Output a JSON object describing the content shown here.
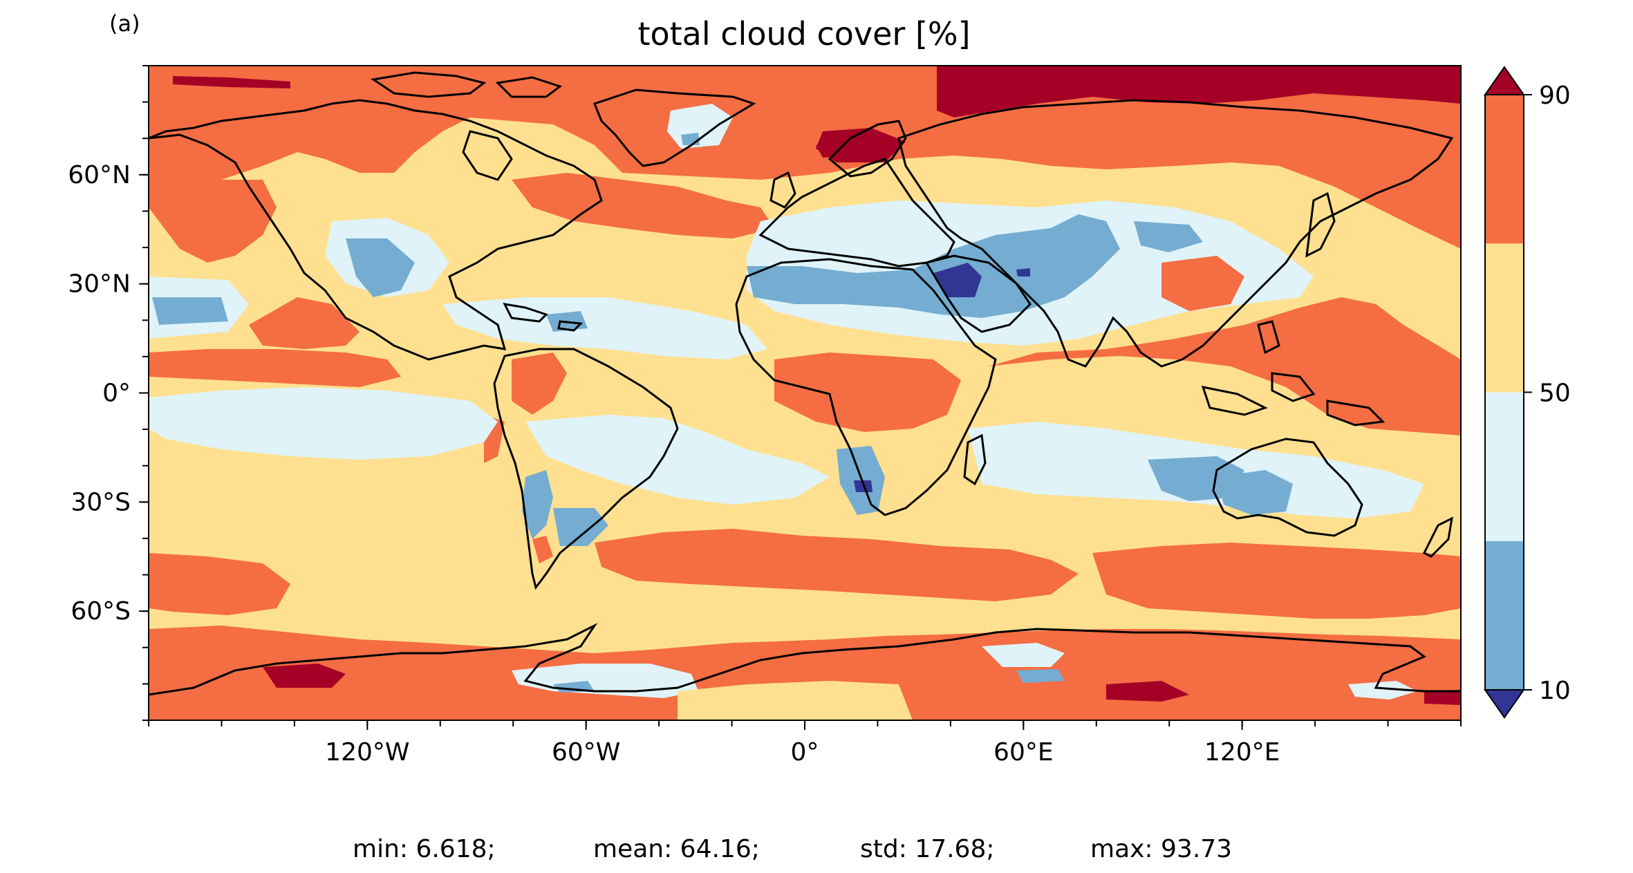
{
  "panel_label": "(a)",
  "title": "total cloud cover [%]",
  "axes": {
    "lon_ticks": [
      {
        "value": -120,
        "label": "120°W"
      },
      {
        "value": -60,
        "label": "60°W"
      },
      {
        "value": 0,
        "label": "0°"
      },
      {
        "value": 60,
        "label": "60°E"
      },
      {
        "value": 120,
        "label": "120°E"
      }
    ],
    "lat_ticks": [
      {
        "value": 60,
        "label": "60°N"
      },
      {
        "value": 30,
        "label": "30°N"
      },
      {
        "value": 0,
        "label": "0°"
      },
      {
        "value": -30,
        "label": "30°S"
      },
      {
        "value": -60,
        "label": "60°S"
      }
    ],
    "lon_range": [
      -180,
      180
    ],
    "lat_range": [
      -90,
      90
    ],
    "grid": false
  },
  "colorbar": {
    "position": "right",
    "extend": "both",
    "bins": [
      {
        "from": 10,
        "to": 30,
        "color": "#74add1"
      },
      {
        "from": 30,
        "to": 50,
        "color": "#e0f3f8"
      },
      {
        "from": 50,
        "to": 70,
        "color": "#fee090"
      },
      {
        "from": 70,
        "to": 90,
        "color": "#f46d43"
      }
    ],
    "under_color": "#313695",
    "over_color": "#a50026",
    "tick_labels": [
      {
        "value": 90,
        "label": "90"
      },
      {
        "value": 50,
        "label": "50"
      },
      {
        "value": 10,
        "label": "10"
      }
    ]
  },
  "stats": {
    "min": "min: 6.618;",
    "mean": "mean: 64.16;",
    "std": "std: 17.68;",
    "max": "max: 93.73"
  },
  "colors": {
    "bin_10_30": "#74add1",
    "bin_30_50": "#e0f3f8",
    "bin_50_70": "#fee090",
    "bin_70_90": "#f46d43",
    "over": "#a50026",
    "under": "#313695",
    "coastline": "#000000"
  }
}
